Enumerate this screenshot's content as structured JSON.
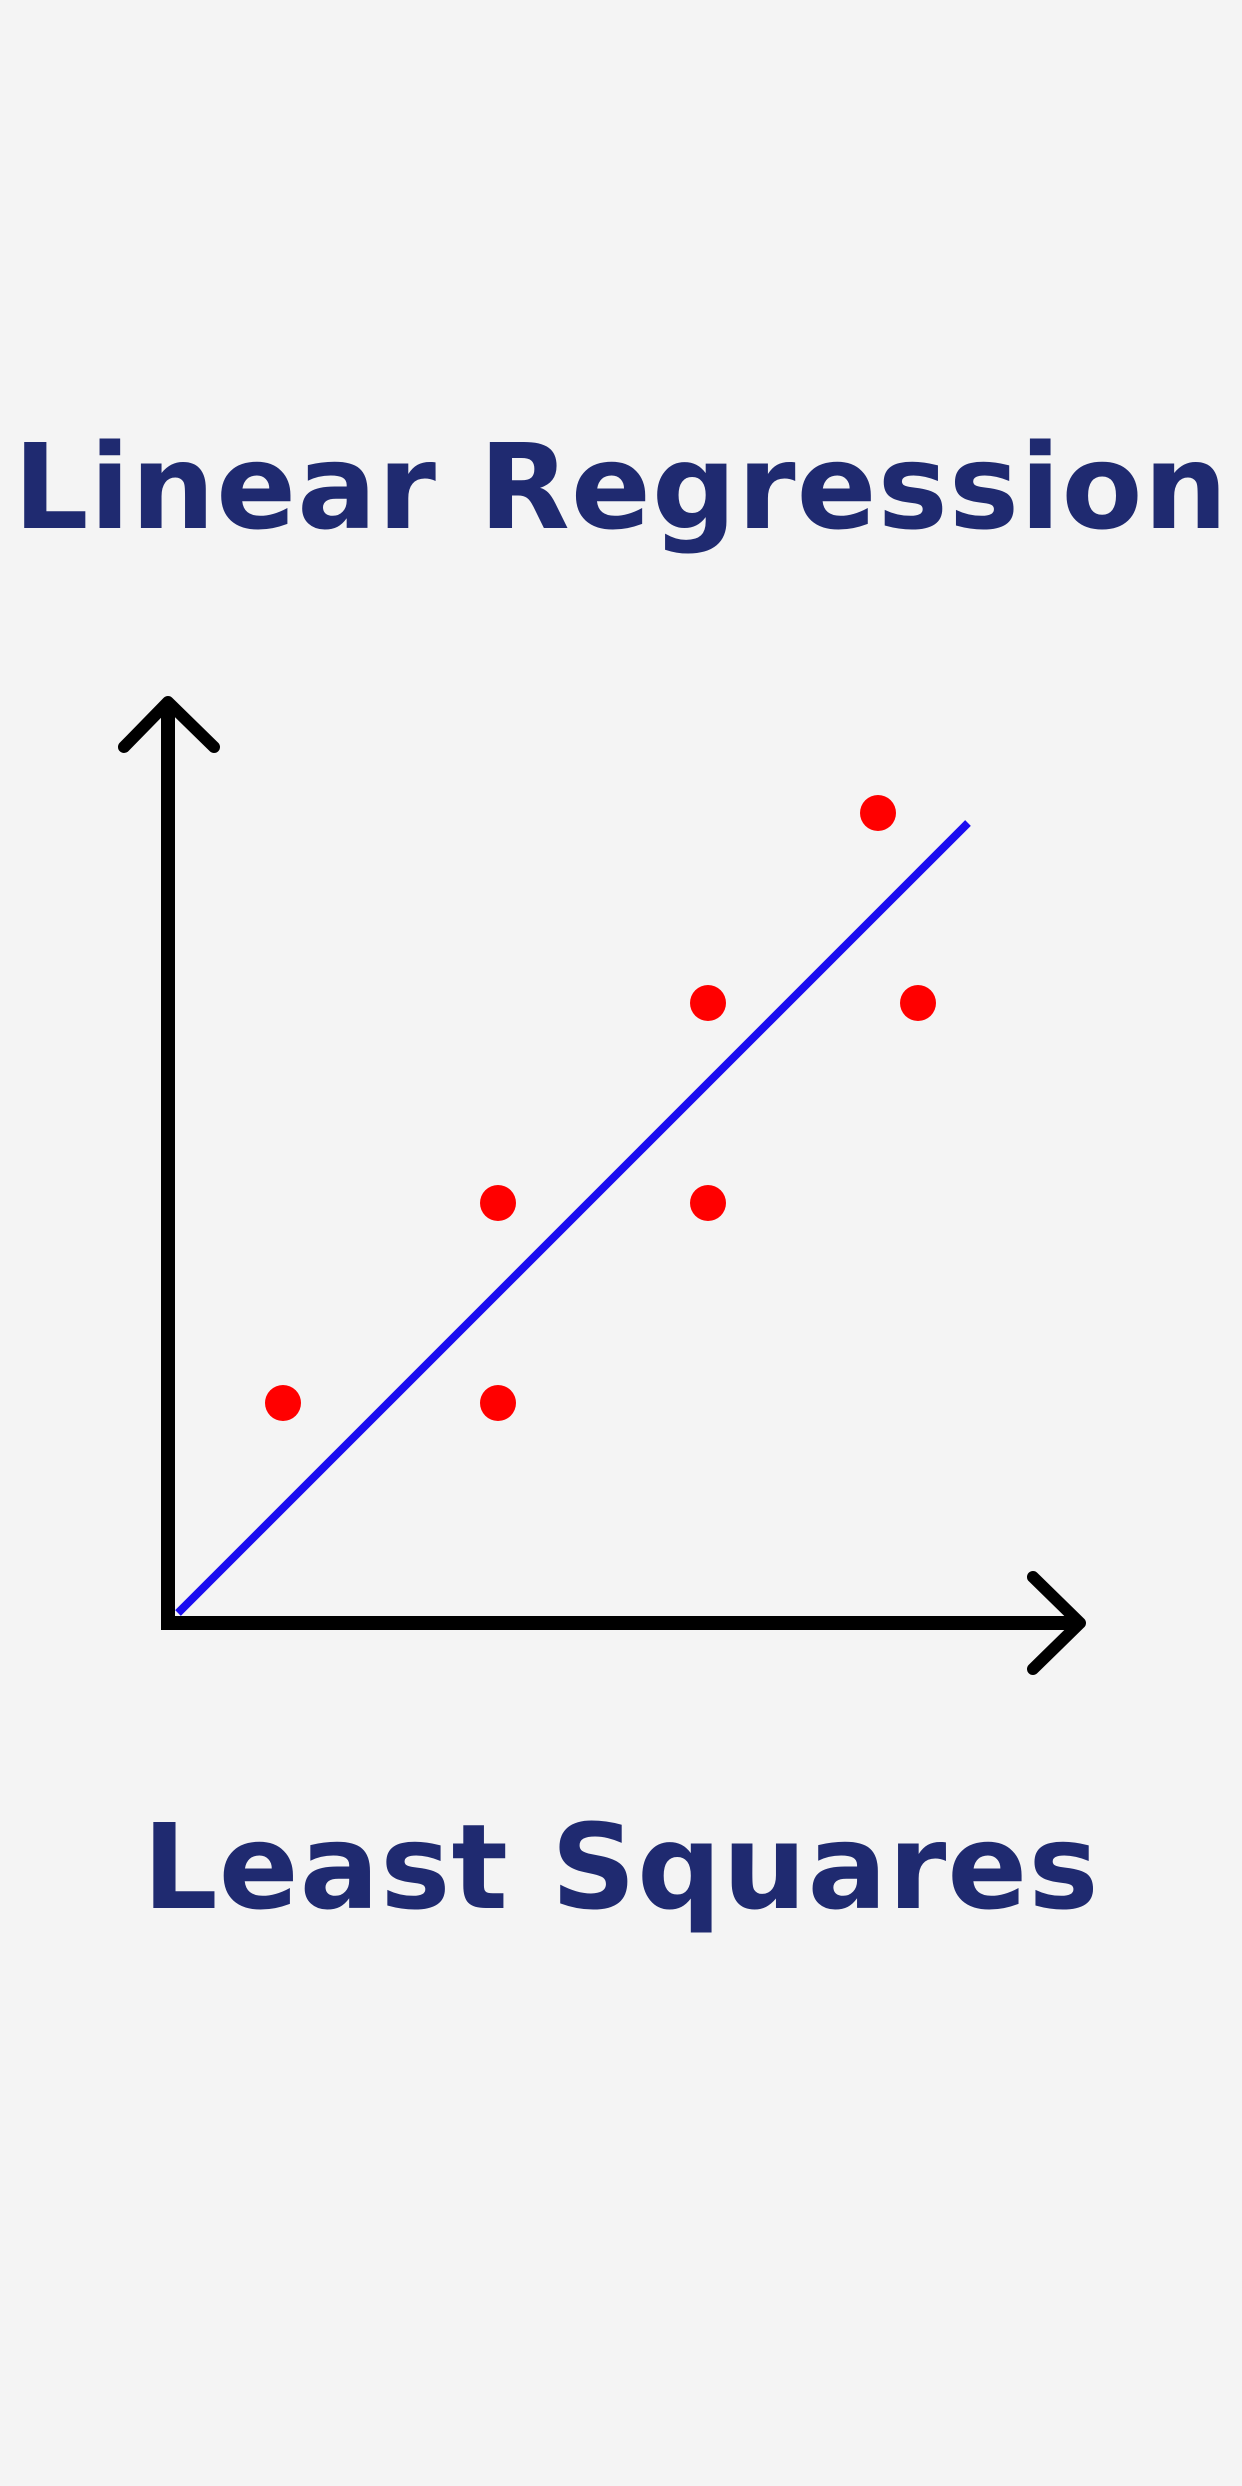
{
  "header": {
    "title": "Linear Regression"
  },
  "footer": {
    "subtitle": "Least Squares"
  },
  "chart_data": {
    "type": "scatter",
    "title": "Linear Regression",
    "subtitle": "Least Squares",
    "xlabel": "",
    "ylabel": "",
    "xlim": [
      0,
      10
    ],
    "ylim": [
      0,
      10
    ],
    "grid": false,
    "axis_ticks": false,
    "colors": {
      "points": "#ff0000",
      "fit_line": "#1a0cf0",
      "axes": "#000000",
      "title": "#1f2a70"
    },
    "series": [
      {
        "kind": "points",
        "x": [
          1.15,
          3.3,
          3.3,
          5.4,
          5.4,
          7.1,
          7.5
        ],
        "y": [
          2.2,
          2.2,
          4.2,
          4.2,
          6.2,
          8.1,
          6.2
        ]
      },
      {
        "kind": "fit-line",
        "x": [
          0.1,
          8.0
        ],
        "y": [
          0.1,
          8.0
        ]
      }
    ]
  }
}
